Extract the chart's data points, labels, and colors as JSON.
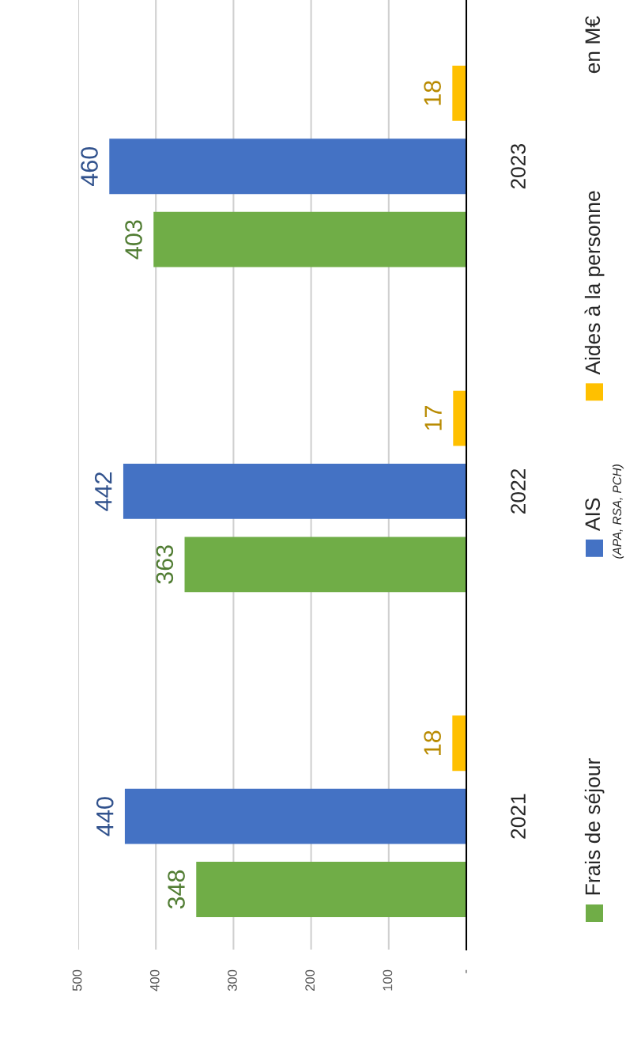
{
  "chart_data": {
    "type": "bar",
    "orientation": "horizontal",
    "categories": [
      "2023",
      "2022",
      "2021"
    ],
    "series": [
      {
        "name": "Frais de séjour",
        "color": "#70ad47",
        "values": [
          403,
          363,
          348
        ]
      },
      {
        "name": "AIS",
        "color": "#4472c4",
        "values": [
          460,
          442,
          440
        ]
      },
      {
        "name": "Aides à la personne",
        "color": "#ffc000",
        "values": [
          18,
          17,
          18
        ]
      }
    ],
    "xlim": [
      500,
      0
    ],
    "xticks": [
      500,
      400,
      300,
      200,
      100,
      {
        "value": 0,
        "label": "-"
      }
    ],
    "grid": "x",
    "legend": "right",
    "data_labels": true,
    "annotations": [
      "en M€",
      "(APA, RSA, PCH)"
    ]
  }
}
